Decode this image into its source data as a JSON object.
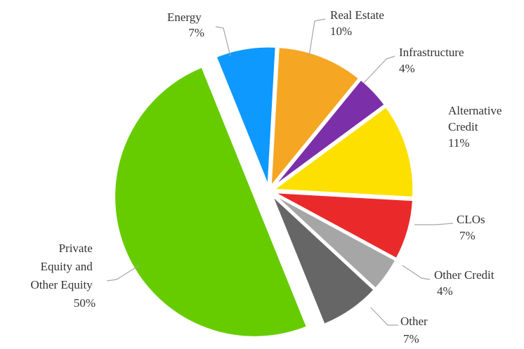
{
  "chart_data": {
    "type": "pie",
    "slices": [
      {
        "name": "Energy",
        "value": 7,
        "pct_label": "7%",
        "color": "#0d99ff"
      },
      {
        "name": "Real Estate",
        "value": 10,
        "pct_label": "10%",
        "color": "#f5a623"
      },
      {
        "name": "Infrastructure",
        "value": 4,
        "pct_label": "4%",
        "color": "#7b2fa8"
      },
      {
        "name": "Alternative Credit",
        "value": 11,
        "pct_label": "11%",
        "color": "#fde000"
      },
      {
        "name": "CLOs",
        "value": 7,
        "pct_label": "7%",
        "color": "#ea2a2a"
      },
      {
        "name": "Other Credit",
        "value": 4,
        "pct_label": "4%",
        "color": "#a6a6a6"
      },
      {
        "name": "Other",
        "value": 7,
        "pct_label": "7%",
        "color": "#666666"
      },
      {
        "name": "Private Equity and Other Equity",
        "value": 50,
        "pct_label": "50%",
        "color": "#66cc00"
      }
    ],
    "labels": {
      "energy": [
        "Energy",
        "7%"
      ],
      "real_estate": [
        "Real Estate",
        "10%"
      ],
      "infrastructure": [
        "Infrastructure",
        "4%"
      ],
      "alternative_credit": [
        "Alternative",
        "Credit",
        "11%"
      ],
      "clos": [
        "CLOs",
        "7%"
      ],
      "other_credit": [
        "Other Credit",
        "4%"
      ],
      "other": [
        "Other",
        "7%"
      ],
      "private_equity": [
        "Private",
        "Equity and",
        "Other Equity",
        "50%"
      ]
    }
  }
}
